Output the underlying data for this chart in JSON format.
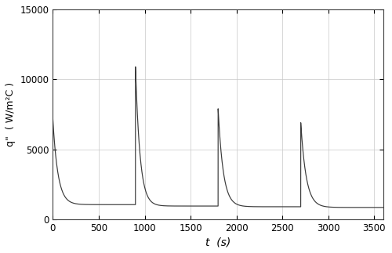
{
  "title": "",
  "xlabel": "t  (s)",
  "ylabel": "q\"  ( W/m²C )",
  "xlim": [
    0,
    3600
  ],
  "ylim": [
    0,
    15000
  ],
  "xticks": [
    0,
    500,
    1000,
    1500,
    2000,
    2500,
    3000,
    3500
  ],
  "yticks": [
    0,
    5000,
    10000,
    15000
  ],
  "line_color": "#3a3a3a",
  "line_width": 0.85,
  "bg_color": "#ffffff",
  "grid_color": "#c8c8c8",
  "figsize": [
    5.0,
    3.23
  ],
  "dpi": 100,
  "segments": [
    {
      "t_start": 0,
      "q_peak": 7200,
      "q_base": 1050,
      "k": 0.018,
      "duration": 900
    },
    {
      "t_start": 900,
      "q_peak": 10900,
      "q_base": 950,
      "k": 0.02,
      "duration": 900
    },
    {
      "t_start": 1800,
      "q_peak": 7900,
      "q_base": 900,
      "k": 0.018,
      "duration": 900
    },
    {
      "t_start": 2700,
      "q_peak": 6900,
      "q_base": 850,
      "k": 0.017,
      "duration": 900
    }
  ]
}
